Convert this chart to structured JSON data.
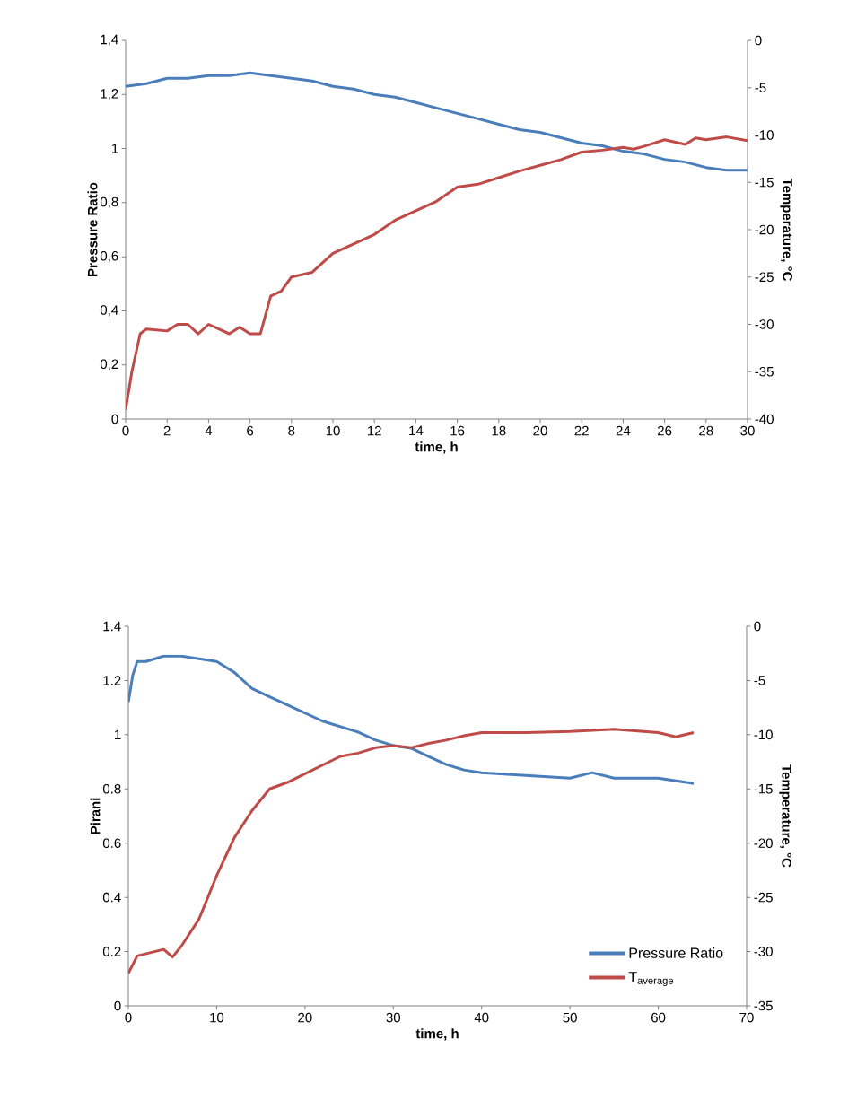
{
  "chart_data": [
    {
      "type": "line",
      "xlabel": "time, h",
      "ylabel": "Pressure Ratio",
      "y2label": "Temperature, °C",
      "xlim": [
        0,
        30
      ],
      "xticks": [
        0,
        2,
        4,
        6,
        8,
        10,
        12,
        14,
        16,
        18,
        20,
        22,
        24,
        26,
        28,
        30
      ],
      "ylim": [
        0,
        1.4
      ],
      "yticks": [
        0,
        {
          "value": 0.2,
          "label": "0,2"
        },
        {
          "value": 0.4,
          "label": "0,4"
        },
        {
          "value": 0.6,
          "label": "0,6"
        },
        {
          "value": 0.8,
          "label": "0,8"
        },
        1,
        {
          "value": 1.2,
          "label": "1,2"
        },
        {
          "value": 1.4,
          "label": "1,4"
        }
      ],
      "y2lim": [
        -40,
        0
      ],
      "y2ticks": [
        -40,
        -35,
        -30,
        -25,
        -20,
        -15,
        -10,
        -5,
        0
      ],
      "legend": false,
      "series": [
        {
          "color": "#4a7ebb",
          "x": [
            0,
            1,
            2,
            3,
            4,
            5,
            6,
            7,
            8,
            9,
            10,
            11,
            12,
            13,
            14,
            15,
            16,
            17,
            18,
            19,
            20,
            21,
            22,
            23,
            24,
            25,
            26,
            27,
            28,
            29,
            30
          ],
          "values": [
            1.23,
            1.24,
            1.26,
            1.26,
            1.27,
            1.27,
            1.28,
            1.27,
            1.26,
            1.25,
            1.23,
            1.22,
            1.2,
            1.19,
            1.17,
            1.15,
            1.13,
            1.11,
            1.09,
            1.07,
            1.06,
            1.04,
            1.02,
            1.01,
            0.99,
            0.98,
            0.96,
            0.95,
            0.93,
            0.92,
            0.92
          ]
        },
        {
          "color": "#be4b48",
          "axis": "y2",
          "x": [
            0,
            0.3,
            0.7,
            1,
            2,
            2.5,
            3,
            3.5,
            4,
            5,
            5.5,
            6,
            6.5,
            7,
            7.5,
            8,
            9,
            10,
            11,
            12,
            13,
            14,
            15,
            16,
            17,
            18,
            19,
            20,
            21,
            22,
            23,
            24,
            24.5,
            25,
            26,
            27,
            27.5,
            28,
            29,
            30
          ],
          "values": [
            -39,
            -35,
            -31,
            -30.5,
            -30.7,
            -30,
            -30,
            -31,
            -30,
            -31,
            -30.3,
            -31,
            -31,
            -27,
            -26.5,
            -25,
            -24.5,
            -22.5,
            -21.5,
            -20.5,
            -19,
            -18,
            -17,
            -15.5,
            -15.2,
            -14.5,
            -13.8,
            -13.2,
            -12.6,
            -11.8,
            -11.6,
            -11.3,
            -11.5,
            -11.2,
            -10.5,
            -11,
            -10.3,
            -10.5,
            -10.2,
            -10.6
          ]
        }
      ]
    },
    {
      "type": "line",
      "xlabel": "time, h",
      "ylabel": "Pirani",
      "y2label": "Temperature, °C",
      "xlim": [
        0,
        70
      ],
      "xticks": [
        0,
        10,
        20,
        30,
        40,
        50,
        60,
        70
      ],
      "ylim": [
        0,
        1.4
      ],
      "yticks": [
        0,
        0.2,
        0.4,
        0.6,
        0.8,
        1,
        1.2,
        1.4
      ],
      "y2lim": [
        -35,
        0
      ],
      "y2ticks": [
        -35,
        -30,
        -25,
        -20,
        -15,
        -10,
        -5,
        0
      ],
      "legend": "bottom right",
      "series": [
        {
          "name": "Pressure Ratio",
          "color": "#4a7ebb",
          "x": [
            0,
            0.5,
            1,
            2,
            4,
            6,
            8,
            10,
            12,
            14,
            16,
            18,
            20,
            22,
            24,
            26,
            28,
            30,
            32,
            34,
            36,
            38,
            40,
            45,
            50,
            52.5,
            55,
            60,
            64
          ],
          "values": [
            1.12,
            1.22,
            1.27,
            1.27,
            1.29,
            1.29,
            1.28,
            1.27,
            1.23,
            1.17,
            1.14,
            1.11,
            1.08,
            1.05,
            1.03,
            1.01,
            0.98,
            0.96,
            0.95,
            0.92,
            0.89,
            0.87,
            0.86,
            0.85,
            0.84,
            0.86,
            0.84,
            0.84,
            0.82
          ]
        },
        {
          "name": "T$_{average}$",
          "color": "#be4b48",
          "axis": "y2",
          "x": [
            0,
            1,
            4,
            5,
            6,
            8,
            10,
            12,
            14,
            16,
            18,
            20,
            22,
            24,
            26,
            28,
            30,
            32,
            34,
            36,
            38,
            40,
            45,
            50,
            55,
            60,
            62,
            64
          ],
          "values": [
            -32,
            -30.4,
            -29.8,
            -30.5,
            -29.5,
            -27,
            -23,
            -19.5,
            -17,
            -15,
            -14.4,
            -13.6,
            -12.8,
            -12,
            -11.7,
            -11.2,
            -11,
            -11.2,
            -10.8,
            -10.5,
            -10.1,
            -9.8,
            -9.8,
            -9.7,
            -9.5,
            -9.8,
            -10.2,
            -9.8
          ]
        }
      ]
    }
  ]
}
